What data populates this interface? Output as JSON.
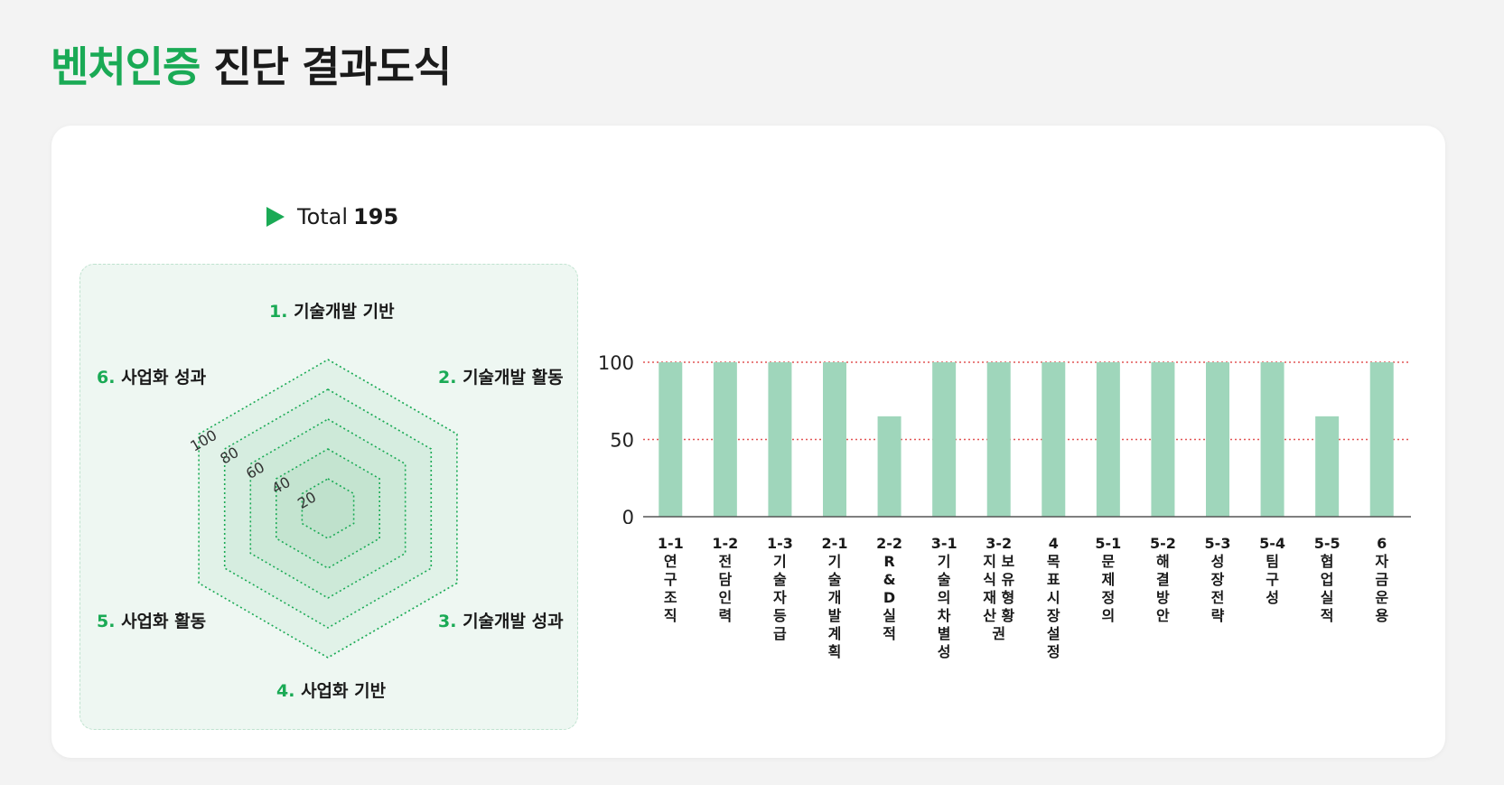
{
  "title": {
    "accent": "벤처인증",
    "rest": " 진단 결과도식"
  },
  "total": {
    "label": "Total",
    "value": "195"
  },
  "radar": {
    "ring_labels": [
      "100",
      "80",
      "60",
      "40",
      "20"
    ],
    "axes": [
      {
        "num": "1.",
        "label": "기술개발 기반"
      },
      {
        "num": "2.",
        "label": "기술개발 활동"
      },
      {
        "num": "3.",
        "label": "기술개발 성과"
      },
      {
        "num": "4.",
        "label": "사업화 기반"
      },
      {
        "num": "5.",
        "label": "사업화 활동"
      },
      {
        "num": "6.",
        "label": "사업화 성과"
      }
    ]
  },
  "colors": {
    "accent": "#1aaa55",
    "bar": "#9fd6bb",
    "refline": "#e25555"
  },
  "chart_data": {
    "type": "bar",
    "categories": [
      {
        "code": "1-1",
        "name": "연구조직"
      },
      {
        "code": "1-2",
        "name": "전담인력"
      },
      {
        "code": "1-3",
        "name": "기술자등급"
      },
      {
        "code": "2-1",
        "name": "기술개발계획"
      },
      {
        "code": "2-2",
        "name": "R&D실적"
      },
      {
        "code": "3-1",
        "name": "기술의차별성"
      },
      {
        "code": "3-2",
        "name": "지식재산권보유형황"
      },
      {
        "code": "4",
        "name": "목표시장설정"
      },
      {
        "code": "5-1",
        "name": "문제정의"
      },
      {
        "code": "5-2",
        "name": "해결방안"
      },
      {
        "code": "5-3",
        "name": "성장전략"
      },
      {
        "code": "5-4",
        "name": "팀구성"
      },
      {
        "code": "5-5",
        "name": "협업실적"
      },
      {
        "code": "6",
        "name": "자금운용"
      }
    ],
    "values": [
      100,
      100,
      100,
      100,
      65,
      100,
      100,
      100,
      100,
      100,
      100,
      100,
      65,
      100
    ],
    "yticks": [
      "0",
      "50",
      "100"
    ],
    "ylim": [
      0,
      100
    ],
    "reference_lines": [
      50,
      100
    ]
  }
}
